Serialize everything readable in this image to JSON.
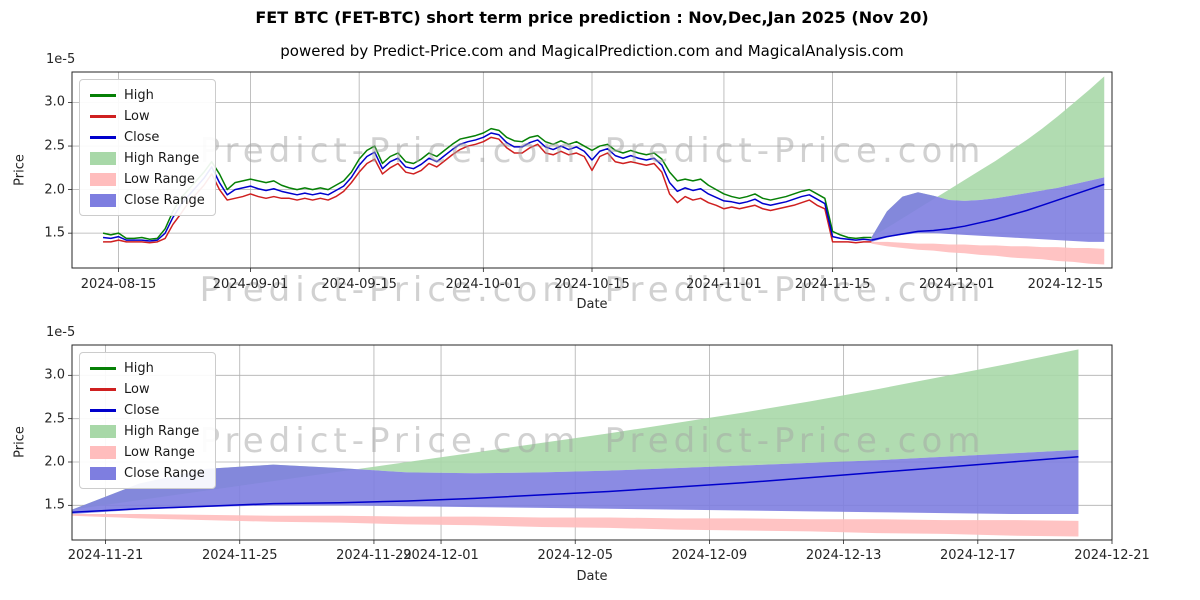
{
  "watermark": {
    "text": "Predict-Price.com"
  },
  "chart_data": [
    {
      "type": "line",
      "title": "FET BTC (FET-BTC) short term price prediction : Nov,Dec,Jan 2025 (Nov 20)",
      "subtitle": "powered by Predict-Price.com and MagicalPrediction.com and MagicalAnalysis.com",
      "xlabel": "Date",
      "ylabel": "Price",
      "y_offset_label": "1e-5",
      "y_unit_multiplier": 1e-05,
      "xlim": [
        "2024-08-09",
        "2024-12-21"
      ],
      "ylim": [
        1.1,
        3.35
      ],
      "x_ticks": [
        "2024-08-15",
        "2024-09-01",
        "2024-09-15",
        "2024-10-01",
        "2024-10-15",
        "2024-11-01",
        "2024-11-15",
        "2024-12-01",
        "2024-12-15"
      ],
      "y_ticks": [
        1.5,
        2.0,
        2.5,
        3.0
      ],
      "grid": true,
      "legend_position": "upper-left",
      "legend": [
        {
          "label": "High",
          "swatch": "line",
          "color": "#068006"
        },
        {
          "label": "Low",
          "swatch": "line",
          "color": "#cf2020"
        },
        {
          "label": "Close",
          "swatch": "line",
          "color": "#0000cc"
        },
        {
          "label": "High Range",
          "swatch": "patch",
          "color": "#a8d8a8"
        },
        {
          "label": "Low Range",
          "swatch": "patch",
          "color": "#ffbdbd"
        },
        {
          "label": "Close Range",
          "swatch": "patch",
          "color": "#7e7ee0"
        }
      ],
      "bands": [
        {
          "name": "high_range",
          "color": "#a8d8a8",
          "x_start": "2024-11-20",
          "step_days": 2,
          "upper": [
            1.45,
            1.56,
            1.67,
            1.78,
            1.89,
            2.0,
            2.11,
            2.22,
            2.33,
            2.45,
            2.57,
            2.7,
            2.84,
            2.99,
            3.14,
            3.3
          ],
          "lower": [
            1.45,
            1.75,
            1.92,
            1.97,
            1.93,
            1.88,
            1.87,
            1.88,
            1.9,
            1.93,
            1.96,
            1.99,
            2.02,
            2.06,
            2.1,
            2.14
          ]
        },
        {
          "name": "low_range",
          "color": "#ffbdbd",
          "x_start": "2024-11-20",
          "step_days": 2,
          "upper": [
            1.4,
            1.4,
            1.39,
            1.38,
            1.38,
            1.37,
            1.37,
            1.36,
            1.36,
            1.35,
            1.35,
            1.34,
            1.34,
            1.33,
            1.33,
            1.32
          ],
          "lower": [
            1.38,
            1.35,
            1.33,
            1.31,
            1.3,
            1.28,
            1.27,
            1.25,
            1.24,
            1.22,
            1.21,
            1.2,
            1.18,
            1.17,
            1.15,
            1.14
          ]
        },
        {
          "name": "close_range",
          "color": "#7e7ee0",
          "x_start": "2024-11-20",
          "step_days": 2,
          "upper": [
            1.45,
            1.75,
            1.92,
            1.97,
            1.93,
            1.88,
            1.87,
            1.88,
            1.9,
            1.93,
            1.96,
            1.99,
            2.02,
            2.06,
            2.1,
            2.14
          ],
          "lower": [
            1.4,
            1.45,
            1.48,
            1.5,
            1.5,
            1.49,
            1.48,
            1.47,
            1.46,
            1.45,
            1.44,
            1.43,
            1.42,
            1.41,
            1.4,
            1.4
          ]
        }
      ],
      "lines": [
        {
          "name": "high",
          "color": "#068006",
          "x_start": "2024-08-13",
          "step_days": 1,
          "y": [
            1.5,
            1.48,
            1.5,
            1.44,
            1.44,
            1.45,
            1.43,
            1.44,
            1.55,
            1.75,
            1.9,
            2.0,
            2.1,
            2.2,
            2.32,
            2.18,
            2.0,
            2.08,
            2.1,
            2.12,
            2.1,
            2.08,
            2.1,
            2.05,
            2.02,
            2.0,
            2.02,
            2.0,
            2.02,
            2.0,
            2.05,
            2.1,
            2.2,
            2.35,
            2.45,
            2.5,
            2.3,
            2.38,
            2.42,
            2.32,
            2.3,
            2.35,
            2.42,
            2.38,
            2.45,
            2.52,
            2.58,
            2.6,
            2.62,
            2.65,
            2.7,
            2.68,
            2.6,
            2.56,
            2.55,
            2.6,
            2.62,
            2.55,
            2.52,
            2.56,
            2.52,
            2.55,
            2.5,
            2.45,
            2.5,
            2.52,
            2.45,
            2.42,
            2.45,
            2.42,
            2.4,
            2.42,
            2.35,
            2.2,
            2.1,
            2.12,
            2.1,
            2.12,
            2.05,
            2.0,
            1.95,
            1.92,
            1.9,
            1.92,
            1.95,
            1.9,
            1.88,
            1.9,
            1.92,
            1.95,
            1.98,
            2.0,
            1.95,
            1.9,
            1.52,
            1.48,
            1.45,
            1.44,
            1.45,
            1.45
          ]
        },
        {
          "name": "low",
          "color": "#cf2020",
          "x_start": "2024-08-13",
          "step_days": 1,
          "y": [
            1.4,
            1.4,
            1.42,
            1.4,
            1.4,
            1.4,
            1.39,
            1.4,
            1.44,
            1.6,
            1.72,
            1.85,
            1.95,
            2.05,
            2.18,
            2.0,
            1.88,
            1.9,
            1.92,
            1.95,
            1.92,
            1.9,
            1.92,
            1.9,
            1.9,
            1.88,
            1.9,
            1.88,
            1.9,
            1.88,
            1.92,
            1.98,
            2.08,
            2.2,
            2.3,
            2.35,
            2.18,
            2.25,
            2.3,
            2.2,
            2.18,
            2.22,
            2.3,
            2.26,
            2.33,
            2.4,
            2.46,
            2.5,
            2.52,
            2.55,
            2.6,
            2.58,
            2.48,
            2.42,
            2.42,
            2.48,
            2.52,
            2.42,
            2.4,
            2.44,
            2.4,
            2.42,
            2.38,
            2.22,
            2.38,
            2.42,
            2.32,
            2.3,
            2.32,
            2.3,
            2.28,
            2.3,
            2.2,
            1.95,
            1.85,
            1.92,
            1.88,
            1.9,
            1.85,
            1.82,
            1.78,
            1.8,
            1.78,
            1.8,
            1.82,
            1.78,
            1.76,
            1.78,
            1.8,
            1.82,
            1.85,
            1.88,
            1.82,
            1.78,
            1.4,
            1.4,
            1.4,
            1.39,
            1.4,
            1.4
          ]
        },
        {
          "name": "close",
          "color": "#0000cc",
          "x_start": "2024-08-13",
          "step_days": 1,
          "y": [
            1.45,
            1.44,
            1.46,
            1.42,
            1.42,
            1.42,
            1.41,
            1.42,
            1.5,
            1.68,
            1.82,
            1.93,
            2.03,
            2.13,
            2.26,
            2.08,
            1.94,
            2.0,
            2.02,
            2.04,
            2.01,
            1.99,
            2.01,
            1.98,
            1.96,
            1.94,
            1.96,
            1.94,
            1.96,
            1.94,
            1.99,
            2.04,
            2.14,
            2.28,
            2.38,
            2.43,
            2.24,
            2.32,
            2.36,
            2.26,
            2.24,
            2.29,
            2.36,
            2.32,
            2.39,
            2.46,
            2.52,
            2.55,
            2.57,
            2.6,
            2.65,
            2.63,
            2.54,
            2.49,
            2.49,
            2.54,
            2.57,
            2.49,
            2.46,
            2.5,
            2.46,
            2.49,
            2.44,
            2.34,
            2.44,
            2.47,
            2.39,
            2.36,
            2.39,
            2.36,
            2.34,
            2.36,
            2.28,
            2.08,
            1.98,
            2.02,
            1.99,
            2.01,
            1.95,
            1.91,
            1.87,
            1.86,
            1.84,
            1.86,
            1.89,
            1.84,
            1.82,
            1.84,
            1.86,
            1.89,
            1.92,
            1.94,
            1.89,
            1.84,
            1.46,
            1.44,
            1.43,
            1.42,
            1.43,
            1.42
          ]
        },
        {
          "name": "close_forecast",
          "color": "#0000cc",
          "x_start": "2024-11-20",
          "step_days": 2,
          "y": [
            1.42,
            1.46,
            1.49,
            1.52,
            1.53,
            1.55,
            1.58,
            1.62,
            1.66,
            1.71,
            1.76,
            1.82,
            1.88,
            1.94,
            2.0,
            2.06
          ]
        }
      ]
    },
    {
      "type": "line",
      "title": "",
      "subtitle": "",
      "xlabel": "Date",
      "ylabel": "Price",
      "y_offset_label": "1e-5",
      "y_unit_multiplier": 1e-05,
      "xlim": [
        "2024-11-20",
        "2024-12-21"
      ],
      "ylim": [
        1.1,
        3.35
      ],
      "x_ticks": [
        "2024-11-21",
        "2024-11-25",
        "2024-11-29",
        "2024-12-01",
        "2024-12-05",
        "2024-12-09",
        "2024-12-13",
        "2024-12-17",
        "2024-12-21"
      ],
      "y_ticks": [
        1.5,
        2.0,
        2.5,
        3.0
      ],
      "grid": true,
      "legend_position": "upper-left",
      "legend": [
        {
          "label": "High",
          "swatch": "line",
          "color": "#068006"
        },
        {
          "label": "Low",
          "swatch": "line",
          "color": "#cf2020"
        },
        {
          "label": "Close",
          "swatch": "line",
          "color": "#0000cc"
        },
        {
          "label": "High Range",
          "swatch": "patch",
          "color": "#a8d8a8"
        },
        {
          "label": "Low Range",
          "swatch": "patch",
          "color": "#ffbdbd"
        },
        {
          "label": "Close Range",
          "swatch": "patch",
          "color": "#7e7ee0"
        }
      ],
      "bands": [
        {
          "name": "high_range",
          "color": "#a8d8a8",
          "x_start": "2024-11-20",
          "step_days": 2,
          "upper": [
            1.45,
            1.56,
            1.67,
            1.78,
            1.89,
            2.0,
            2.11,
            2.22,
            2.33,
            2.45,
            2.57,
            2.7,
            2.84,
            2.99,
            3.14,
            3.3
          ],
          "lower": [
            1.45,
            1.75,
            1.92,
            1.97,
            1.93,
            1.88,
            1.87,
            1.88,
            1.9,
            1.93,
            1.96,
            1.99,
            2.02,
            2.06,
            2.1,
            2.14
          ]
        },
        {
          "name": "low_range",
          "color": "#ffbdbd",
          "x_start": "2024-11-20",
          "step_days": 2,
          "upper": [
            1.4,
            1.4,
            1.39,
            1.38,
            1.38,
            1.37,
            1.37,
            1.36,
            1.36,
            1.35,
            1.35,
            1.34,
            1.34,
            1.33,
            1.33,
            1.32
          ],
          "lower": [
            1.38,
            1.35,
            1.33,
            1.31,
            1.3,
            1.28,
            1.27,
            1.25,
            1.24,
            1.22,
            1.21,
            1.2,
            1.18,
            1.17,
            1.15,
            1.14
          ]
        },
        {
          "name": "close_range",
          "color": "#7e7ee0",
          "x_start": "2024-11-20",
          "step_days": 2,
          "upper": [
            1.45,
            1.75,
            1.92,
            1.97,
            1.93,
            1.88,
            1.87,
            1.88,
            1.9,
            1.93,
            1.96,
            1.99,
            2.02,
            2.06,
            2.1,
            2.14
          ],
          "lower": [
            1.4,
            1.45,
            1.48,
            1.5,
            1.5,
            1.49,
            1.48,
            1.47,
            1.46,
            1.45,
            1.44,
            1.43,
            1.42,
            1.41,
            1.4,
            1.4
          ]
        }
      ],
      "lines": [
        {
          "name": "close_forecast",
          "color": "#0000cc",
          "x_start": "2024-11-20",
          "step_days": 2,
          "y": [
            1.42,
            1.46,
            1.49,
            1.52,
            1.53,
            1.55,
            1.58,
            1.62,
            1.66,
            1.71,
            1.76,
            1.82,
            1.88,
            1.94,
            2.0,
            2.06
          ]
        }
      ]
    }
  ]
}
